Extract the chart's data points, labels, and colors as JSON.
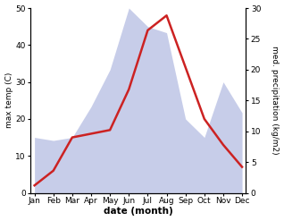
{
  "months": [
    "Jan",
    "Feb",
    "Mar",
    "Apr",
    "May",
    "Jun",
    "Jul",
    "Aug",
    "Sep",
    "Oct",
    "Nov",
    "Dec"
  ],
  "month_x": [
    0,
    1,
    2,
    3,
    4,
    5,
    6,
    7,
    8,
    9,
    10,
    11
  ],
  "temp": [
    2.0,
    6.0,
    15.0,
    16.0,
    17.0,
    28.0,
    44.0,
    48.0,
    34.0,
    20.0,
    13.0,
    7.0
  ],
  "precip": [
    9.0,
    8.5,
    9.0,
    14.0,
    20.0,
    30.0,
    27.0,
    26.0,
    12.0,
    9.0,
    18.0,
    13.0
  ],
  "temp_color": "#cc2222",
  "precip_fill_color": "#b0b8e0",
  "left_ylim": [
    0,
    50
  ],
  "right_ylim": [
    0,
    30
  ],
  "left_yticks": [
    0,
    10,
    20,
    30,
    40,
    50
  ],
  "right_yticks": [
    0,
    5,
    10,
    15,
    20,
    25,
    30
  ],
  "xlabel": "date (month)",
  "ylabel_left": "max temp (C)",
  "ylabel_right": "med. precipitation (kg/m2)",
  "figsize": [
    3.18,
    2.47
  ],
  "dpi": 100
}
